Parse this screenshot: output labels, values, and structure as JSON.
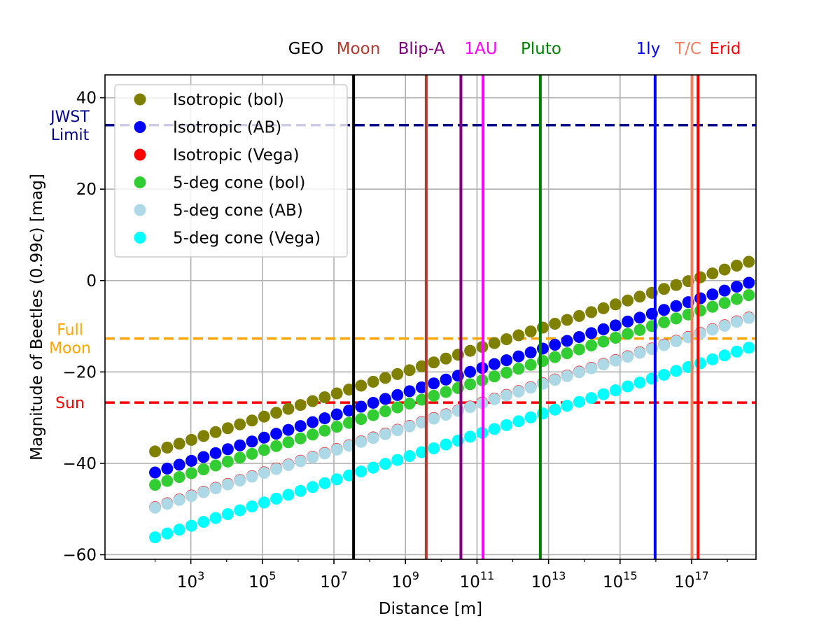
{
  "chart_data": {
    "type": "scatter",
    "xlabel": "Distance [m]",
    "ylabel": "Magnitude of Beetles (0.99c) [mag]",
    "x_scale": "log",
    "xlim_log10": [
      0.6,
      18.8
    ],
    "ylim": [
      -61,
      45
    ],
    "grid": true,
    "legend_position": "upper-left",
    "x_ticks": [
      {
        "base": "10",
        "exp": "3",
        "log10": 3
      },
      {
        "base": "10",
        "exp": "5",
        "log10": 5
      },
      {
        "base": "10",
        "exp": "7",
        "log10": 7
      },
      {
        "base": "10",
        "exp": "9",
        "log10": 9
      },
      {
        "base": "10",
        "exp": "11",
        "log10": 11
      },
      {
        "base": "10",
        "exp": "13",
        "log10": 13
      },
      {
        "base": "10",
        "exp": "15",
        "log10": 15
      },
      {
        "base": "10",
        "exp": "17",
        "log10": 17
      }
    ],
    "y_ticks": [
      {
        "value": 40,
        "label": "40"
      },
      {
        "value": 20,
        "label": "20"
      },
      {
        "value": 0,
        "label": "0"
      },
      {
        "value": -20,
        "label": "−20"
      },
      {
        "value": -40,
        "label": "−40"
      },
      {
        "value": -60,
        "label": "−60"
      }
    ],
    "x_log10_points": {
      "start": 2.0,
      "end": 18.6,
      "count": 50
    },
    "series": [
      {
        "name": "Isotropic (bol)",
        "color": "#808000",
        "offset_at_log10_0": -42.4,
        "slope_per_decade": 2.5
      },
      {
        "name": "Isotropic (AB)",
        "color": "#0000ff",
        "offset_at_log10_0": -47.0,
        "slope_per_decade": 2.5
      },
      {
        "name": "Isotropic (Vega)",
        "color": "#ff0000",
        "offset_at_log10_0": -54.6,
        "slope_per_decade": 2.5
      },
      {
        "name": "5-deg cone (bol)",
        "color": "#32cd32",
        "offset_at_log10_0": -49.7,
        "slope_per_decade": 2.5
      },
      {
        "name": "5-deg cone (AB)",
        "color": "#add8e6",
        "offset_at_log10_0": -54.7,
        "slope_per_decade": 2.5
      },
      {
        "name": "5-deg cone (Vega)",
        "color": "#00ffff",
        "offset_at_log10_0": -61.2,
        "slope_per_decade": 2.5
      }
    ],
    "vertical_markers": [
      {
        "label": "GEO",
        "log10": 7.55,
        "color": "#000000"
      },
      {
        "label": "Moon",
        "log10": 9.58,
        "color": "#b03a2e"
      },
      {
        "label": "Blip-A",
        "log10": 10.55,
        "color": "#800080"
      },
      {
        "label": "1AU",
        "log10": 11.17,
        "color": "#ff00ff"
      },
      {
        "label": "Pluto",
        "log10": 12.77,
        "color": "#008000"
      },
      {
        "label": "1ly",
        "log10": 15.98,
        "color": "#0000ff"
      },
      {
        "label": "T/C",
        "log10": 17.01,
        "color": "#f08060"
      },
      {
        "label": "Erid",
        "log10": 17.18,
        "color": "#ff0000"
      }
    ],
    "horizontal_markers": [
      {
        "label_lines": [
          "JWST",
          "Limit"
        ],
        "value": 34,
        "color": "#00008b"
      },
      {
        "label_lines": [
          "Full",
          "Moon"
        ],
        "value": -12.7,
        "color": "#ffa500"
      },
      {
        "label_lines": [
          "Sun"
        ],
        "value": -26.7,
        "color": "#ff0000"
      }
    ]
  }
}
